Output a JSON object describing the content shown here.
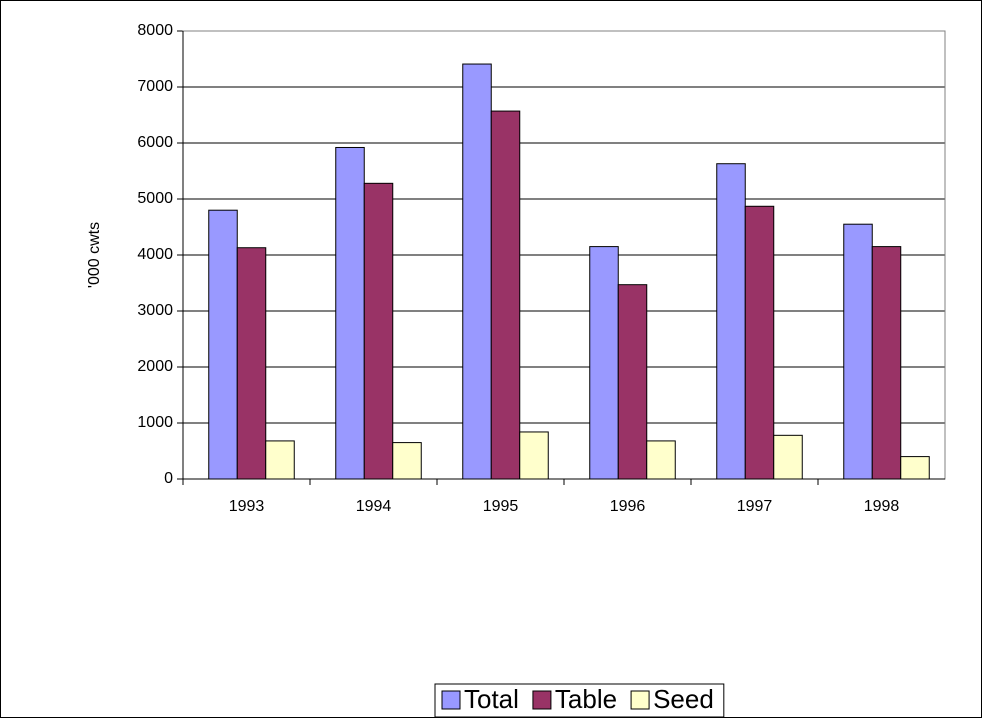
{
  "chart_data": {
    "type": "bar",
    "y_label": "'000 cwts",
    "categories": [
      "1993",
      "1994",
      "1995",
      "1996",
      "1997",
      "1998"
    ],
    "series": [
      {
        "name": "Total",
        "color": "#9999ff",
        "values": [
          4800,
          5920,
          7410,
          4150,
          5630,
          4550
        ]
      },
      {
        "name": "Table",
        "color": "#993366",
        "values": [
          4130,
          5280,
          6570,
          3470,
          4870,
          4150
        ]
      },
      {
        "name": "Seed",
        "color": "#ffffcc",
        "values": [
          680,
          650,
          840,
          680,
          780,
          400
        ]
      }
    ],
    "ylim": [
      0,
      8000
    ],
    "yticks": [
      0,
      1000,
      2000,
      3000,
      4000,
      5000,
      6000,
      7000,
      8000
    ],
    "grid": true,
    "legend": "bottom"
  }
}
